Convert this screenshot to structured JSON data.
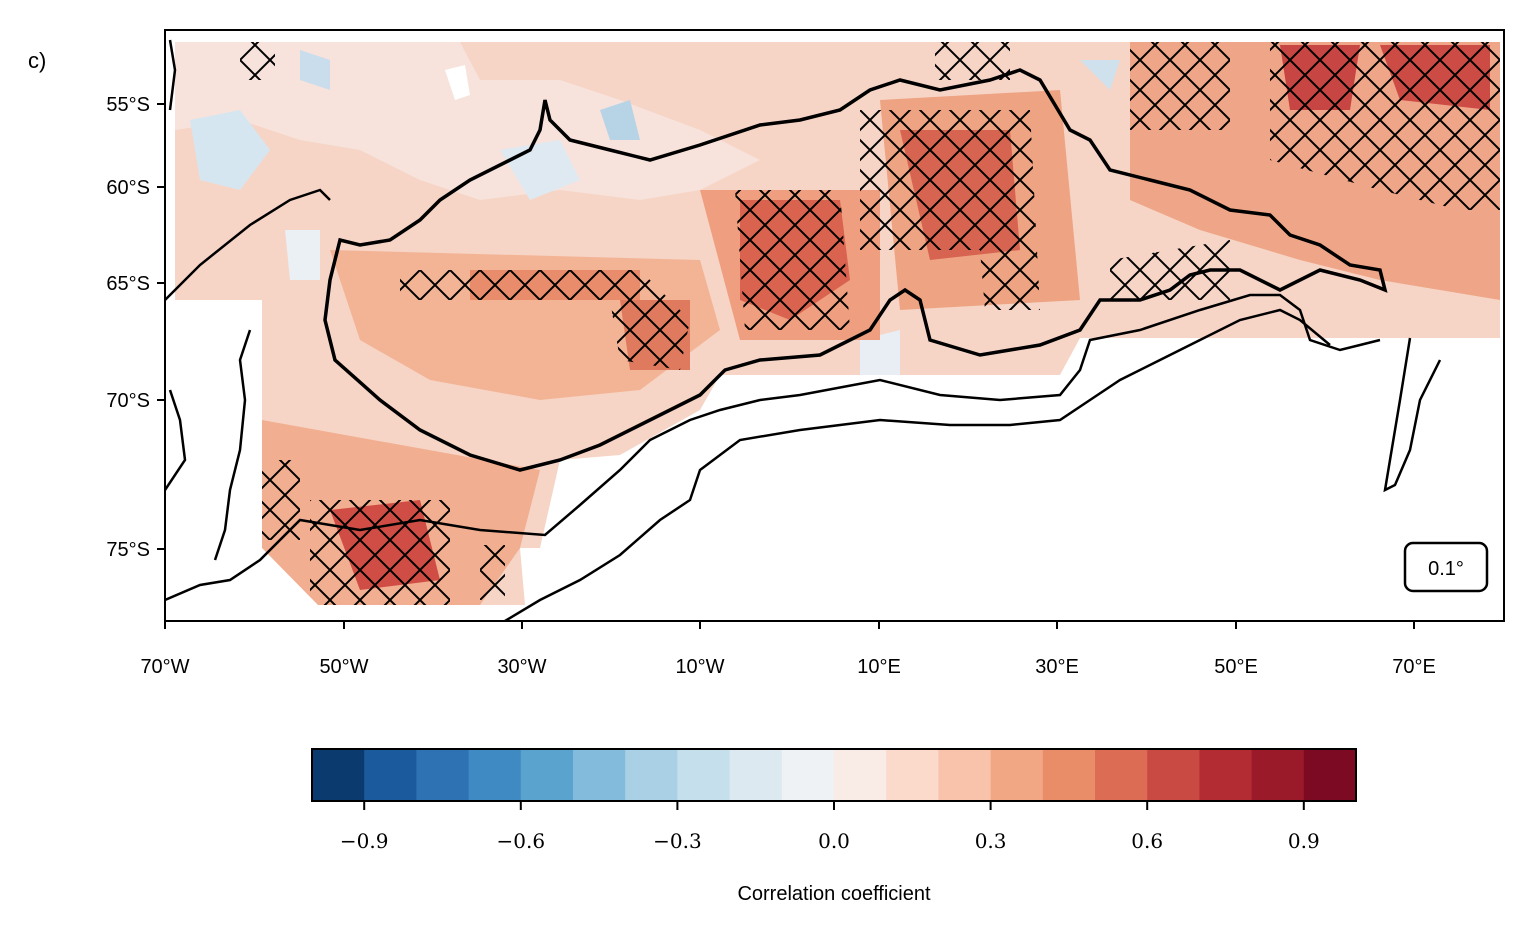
{
  "panel_label": "c)",
  "resolution_badge": "0.1°",
  "colorbar": {
    "label": "Correlation coefficient",
    "ticks": [
      "−0.9",
      "−0.6",
      "−0.3",
      "0.0",
      "0.3",
      "0.6",
      "0.9"
    ],
    "tick_values": [
      -0.9,
      -0.6,
      -0.3,
      0.0,
      0.3,
      0.6,
      0.9
    ],
    "range": [
      -1.0,
      1.0
    ],
    "colors": [
      "#0b3a6e",
      "#1b5a9c",
      "#2e72b3",
      "#3f8ac2",
      "#5aa3cf",
      "#82bbdb",
      "#a9d0e5",
      "#c5dfec",
      "#dde9f1",
      "#eef2f5",
      "#f9ebe6",
      "#fbd9cb",
      "#f8c3aa",
      "#f2a784",
      "#e98c68",
      "#dc6c54",
      "#c84a43",
      "#b32c33",
      "#9b1a2a",
      "#7c0a22"
    ]
  },
  "x_axis": {
    "ticks": [
      "70°W",
      "50°W",
      "30°W",
      "10°W",
      "10°E",
      "30°E",
      "50°E",
      "70°E"
    ],
    "range_lon": [
      -70,
      80
    ]
  },
  "y_axis": {
    "ticks": [
      "55°S",
      "60°S",
      "65°S",
      "70°S",
      "75°S"
    ],
    "range_lat": [
      -78,
      -52
    ]
  }
}
